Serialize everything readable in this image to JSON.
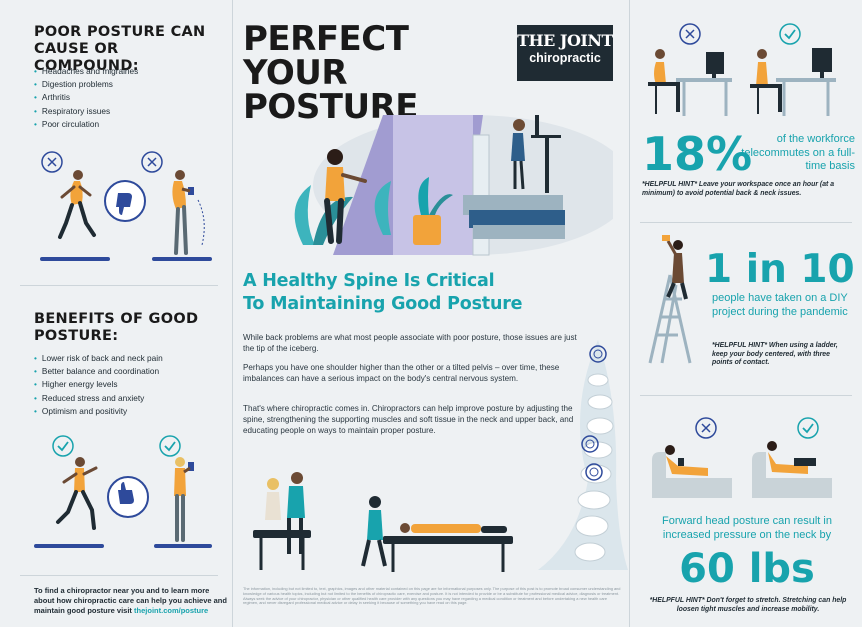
{
  "left": {
    "poor_title": "POOR POSTURE CAN CAUSE OR COMPOUND:",
    "poor_items": [
      "Headaches and migraines",
      "Digestion problems",
      "Arthritis",
      "Respiratory issues",
      "Poor circulation"
    ],
    "benefits_title": "BENEFITS OF GOOD POSTURE:",
    "benefit_items": [
      "Lower risk of back and neck pain",
      "Better balance and coordination",
      "Higher energy levels",
      "Reduced stress and anxiety",
      "Optimism and positivity"
    ],
    "footer_text": "To find a chiropractor near you and to learn more about how chiropractic care can help you achieve and maintain good posture visit",
    "footer_link": "thejoint.com/posture"
  },
  "mid": {
    "title_lines": [
      "PERFECT",
      "YOUR",
      "POSTURE"
    ],
    "logo_top": "THE JOINT",
    "logo_bottom": "chiropractic",
    "subtitle_lines": [
      "A Healthy Spine Is Critical",
      "To Maintaining Good Posture"
    ],
    "paragraphs": [
      "While back problems are what most people associate with poor posture, those issues are just the tip of the iceberg.",
      "Perhaps you have one shoulder higher than the other or a tilted pelvis – over time, these imbalances can have a serious impact on the body's central nervous system.",
      "That's where chiropractic comes in. Chiropractors can help improve posture by adjusting the spine, strengthening the supporting muscles and soft tissue in the neck and upper back, and educating people on ways to maintain proper posture."
    ],
    "disclaimer": "The information, including but not limited to, text, graphics, images and other material contained on this page are for informational purposes only. The purpose of this post is to promote broad consumer understanding and knowledge of various health topics, including but not limited to the benefits of chiropractic care, exercise and posture. It is not intended to provide or be a substitute for professional medical advice, diagnosis or treatment. Always seek the advice of your chiropractor, physician or other qualified health care provider with any questions you may have regarding a medical condition or treatment and before undertaking a new health care regimen, and never disregard professional medical advice or delay in seeking it because of something you have read on this page."
  },
  "right": {
    "stat1_value": "18%",
    "stat1_text": "of the workforce telecommutes on a full-time basis",
    "hint1": "*HELPFUL HINT* Leave your workspace once an hour (at a minimum) to avoid potential back & neck issues.",
    "stat2_value": "1 in 10",
    "stat2_text": "people have taken on a DIY project during the pandemic",
    "hint2": "*HELPFUL HINT* When using a ladder, keep your body centered, with three points of contact.",
    "stat3_intro": "Forward head posture can result in increased pressure on the neck by",
    "stat3_value": "60 lbs",
    "hint3": "*HELPFUL HINT* Don't forget to stretch. Stretching can help loosen tight muscles and increase mobility."
  },
  "colors": {
    "teal": "#18a3ad",
    "navy": "#1f2b33",
    "plate": "#2e4a9b",
    "orange": "#f2a33a"
  }
}
